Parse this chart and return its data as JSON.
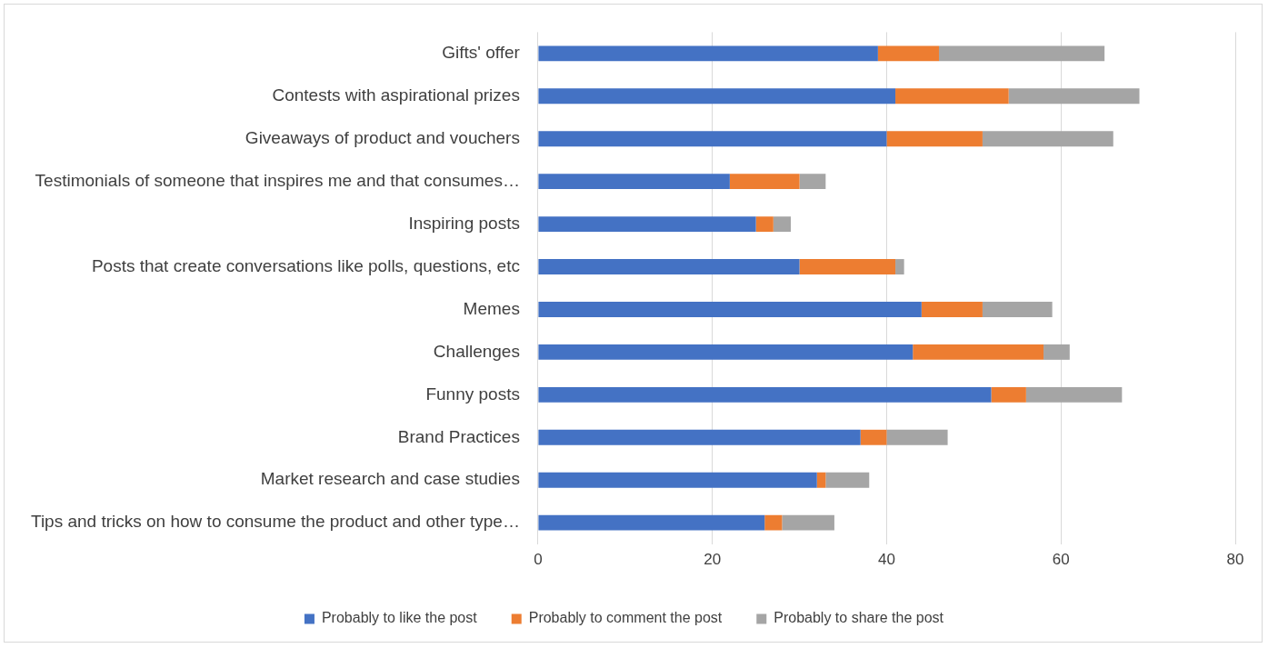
{
  "chart_data": {
    "type": "bar",
    "orientation": "horizontal",
    "stacked": true,
    "categories": [
      "Gifts' offer",
      "Contests with aspirational prizes",
      "Giveaways of product and vouchers",
      "Testimonials of someone that inspires me and that consumes…",
      "Inspiring posts",
      "Posts that create conversations like polls, questions, etc",
      "Memes",
      "Challenges",
      "Funny posts",
      "Brand Practices",
      "Market research and case studies",
      "Tips and tricks on how to consume the product and other type…"
    ],
    "series": [
      {
        "name": "Probably to like the post",
        "color": "#4472c4",
        "values": [
          39,
          41,
          40,
          22,
          25,
          30,
          44,
          43,
          52,
          37,
          32,
          26
        ]
      },
      {
        "name": "Probably to comment the post",
        "color": "#ed7d31",
        "values": [
          7,
          13,
          11,
          8,
          2,
          11,
          7,
          15,
          4,
          3,
          1,
          2
        ]
      },
      {
        "name": "Probably to share the post",
        "color": "#a5a5a5",
        "values": [
          19,
          15,
          15,
          3,
          2,
          1,
          8,
          3,
          11,
          7,
          5,
          6
        ]
      }
    ],
    "xlim": [
      0,
      80
    ],
    "xticks": [
      0,
      20,
      40,
      60,
      80
    ],
    "grid": "x",
    "legend": "bottom"
  }
}
